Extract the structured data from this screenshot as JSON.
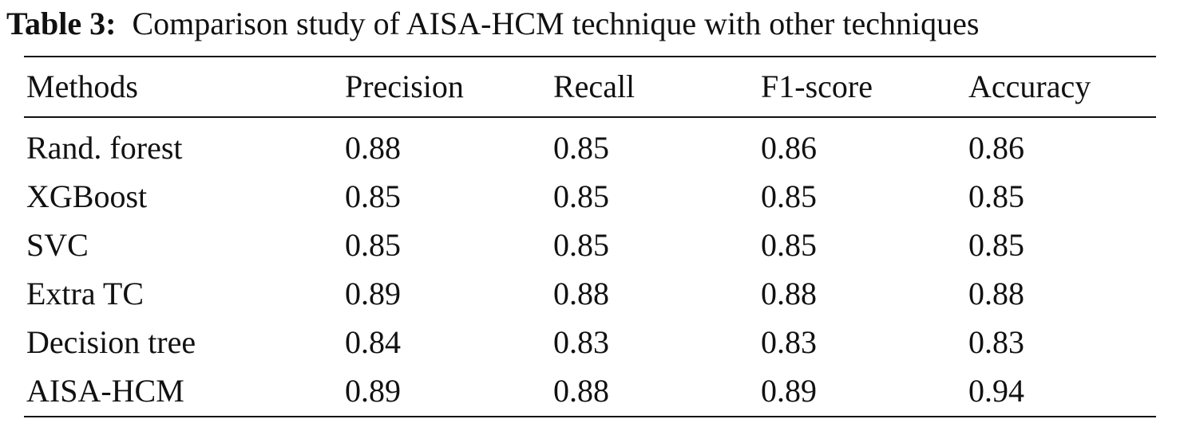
{
  "caption": {
    "label": "Table 3:",
    "text": "Comparison study of AISA-HCM technique with other techniques"
  },
  "table": {
    "headers": [
      "Methods",
      "Precision",
      "Recall",
      "F1-score",
      "Accuracy"
    ],
    "rows": [
      [
        "Rand. forest",
        "0.88",
        "0.85",
        "0.86",
        "0.86"
      ],
      [
        "XGBoost",
        "0.85",
        "0.85",
        "0.85",
        "0.85"
      ],
      [
        "SVC",
        "0.85",
        "0.85",
        "0.85",
        "0.85"
      ],
      [
        "Extra TC",
        "0.89",
        "0.88",
        "0.88",
        "0.88"
      ],
      [
        "Decision tree",
        "0.84",
        "0.83",
        "0.83",
        "0.83"
      ],
      [
        "AISA-HCM",
        "0.89",
        "0.88",
        "0.89",
        "0.94"
      ]
    ]
  }
}
